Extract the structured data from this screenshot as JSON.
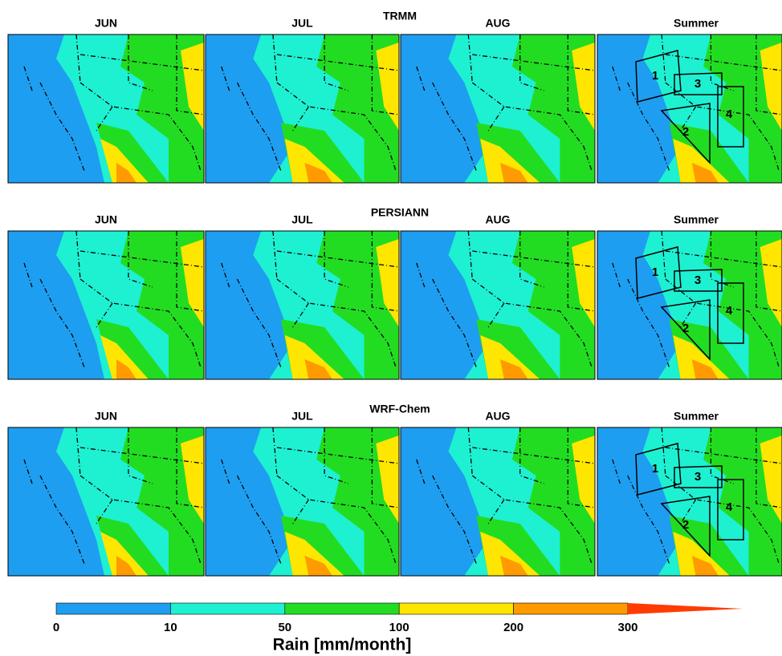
{
  "rows": [
    {
      "title": "TRMM",
      "panels": [
        "JUN",
        "JUL",
        "AUG",
        "Summer"
      ]
    },
    {
      "title": "PERSIANN",
      "panels": [
        "JUN",
        "JUL",
        "AUG",
        "Summer"
      ]
    },
    {
      "title": "WRF-Chem",
      "panels": [
        "JUN",
        "JUL",
        "AUG",
        "Summer"
      ]
    }
  ],
  "regions": [
    "1",
    "2",
    "3",
    "4"
  ],
  "colorbar": {
    "label": "Rain [mm/month]",
    "ticks": [
      0,
      10,
      50,
      100,
      200,
      300
    ],
    "colors": [
      "#1e9ef0",
      "#1ef0d2",
      "#22dc22",
      "#ffe600",
      "#ff9a00",
      "#ff3c00"
    ]
  }
}
